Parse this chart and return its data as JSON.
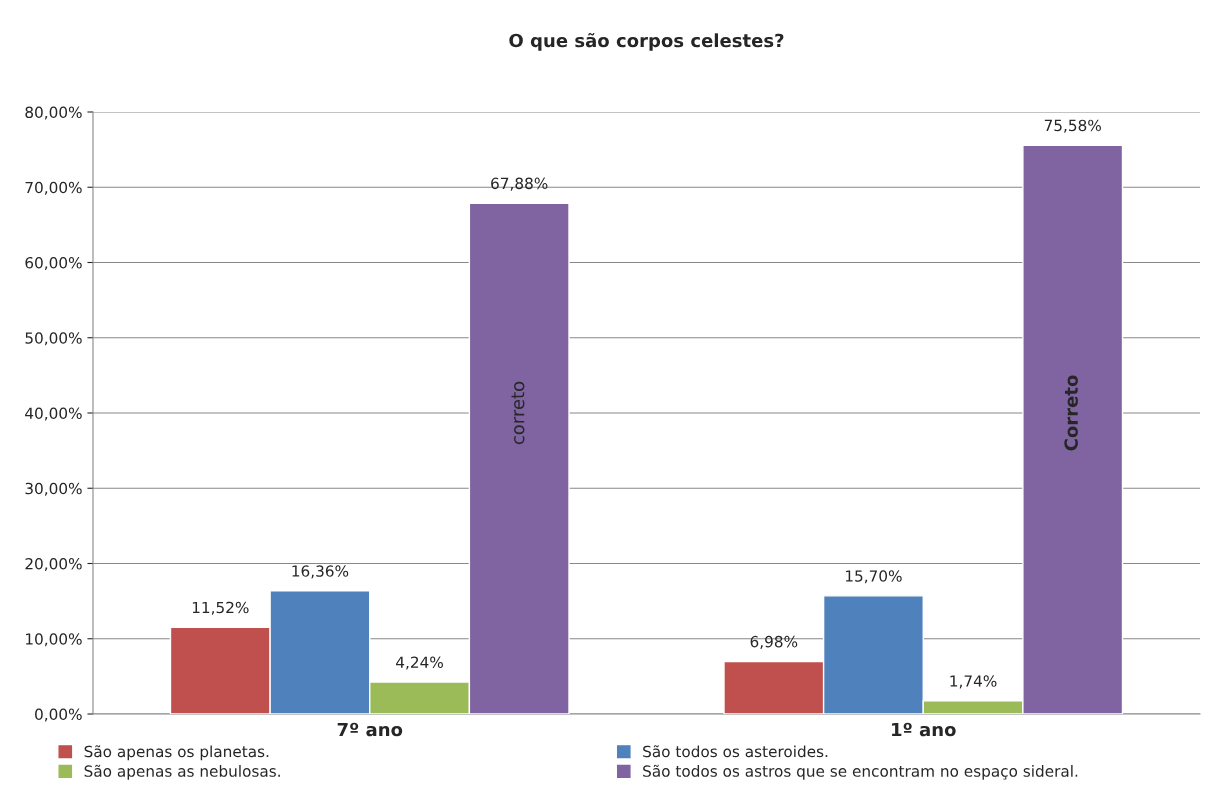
{
  "chart_data": {
    "type": "bar",
    "title": "O que são corpos celestes?",
    "categories": [
      "7º ano",
      "1º ano"
    ],
    "series": [
      {
        "name": "São apenas os planetas.",
        "color": "#c0504d",
        "values": [
          11.52,
          6.98
        ],
        "value_labels": [
          "11,52%",
          "6,98%"
        ]
      },
      {
        "name": "São todos os asteroides.",
        "color": "#4f81bd",
        "values": [
          16.36,
          15.7
        ],
        "value_labels": [
          "16,36%",
          "15,70%"
        ]
      },
      {
        "name": "São apenas as nebulosas.",
        "color": "#9bbb59",
        "values": [
          4.24,
          1.74
        ],
        "value_labels": [
          "4,24%",
          "1,74%"
        ]
      },
      {
        "name": "São todos os astros que se encontram no espaço sideral.",
        "color": "#8064a2",
        "values": [
          67.88,
          75.58
        ],
        "value_labels": [
          "67,88%",
          "75,58%"
        ]
      }
    ],
    "ylim": [
      0,
      80
    ],
    "yticks": [
      {
        "value": 0,
        "label": "0,00%"
      },
      {
        "value": 10,
        "label": "10,00%"
      },
      {
        "value": 20,
        "label": "20,00%"
      },
      {
        "value": 30,
        "label": "30,00%"
      },
      {
        "value": 40,
        "label": "40,00%"
      },
      {
        "value": 50,
        "label": "50,00%"
      },
      {
        "value": 60,
        "label": "60,00%"
      },
      {
        "value": 70,
        "label": "70,00%"
      },
      {
        "value": 80,
        "label": "80,00%"
      }
    ],
    "annotations": [
      "correto",
      "Correto"
    ],
    "grid": "y",
    "legend": "bottom"
  }
}
